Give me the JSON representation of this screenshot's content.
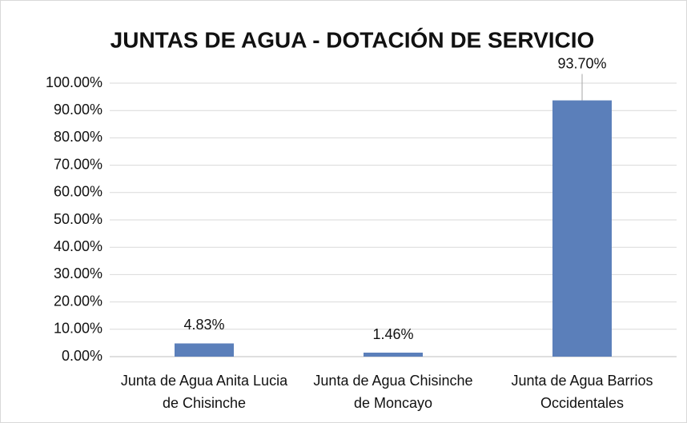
{
  "chart_data": {
    "type": "bar",
    "title": "JUNTAS DE AGUA - DOTACIÓN DE SERVICIO",
    "categories": [
      "Junta de Agua Anita Lucia de Chisinche",
      "Junta de Agua Chisinche de Moncayo",
      "Junta de Agua Barrios Occidentales"
    ],
    "values": [
      4.83,
      1.46,
      93.7
    ],
    "value_labels": [
      "4.83%",
      "1.46%",
      "93.70%"
    ],
    "color": "#5b7fba",
    "ylim": [
      0,
      100
    ],
    "yticks": [
      {
        "value": 0,
        "label": "0.00%"
      },
      {
        "value": 10,
        "label": "10.00%"
      },
      {
        "value": 20,
        "label": "20.00%"
      },
      {
        "value": 30,
        "label": "30.00%"
      },
      {
        "value": 40,
        "label": "40.00%"
      },
      {
        "value": 50,
        "label": "50.00%"
      },
      {
        "value": 60,
        "label": "60.00%"
      },
      {
        "value": 70,
        "label": "70.00%"
      },
      {
        "value": 80,
        "label": "80.00%"
      },
      {
        "value": 90,
        "label": "90.00%"
      },
      {
        "value": 100,
        "label": "100.00%"
      }
    ],
    "grid": true
  }
}
